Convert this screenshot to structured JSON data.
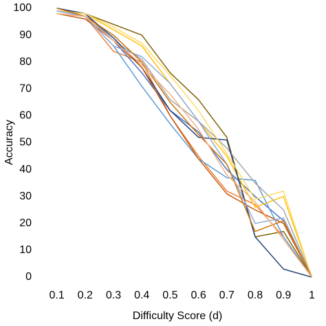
{
  "chart_data": {
    "type": "line",
    "x_label": "Difficulty Score (d)",
    "y_label": "Accuracy",
    "x": [
      0.1,
      0.2,
      0.3,
      0.4,
      0.5,
      0.6,
      0.7,
      0.8,
      0.9,
      1
    ],
    "xlim": [
      0.05,
      1.05
    ],
    "xticks": [
      0.1,
      0.2,
      0.3,
      0.4,
      0.5,
      0.6,
      0.7,
      0.8,
      0.9,
      1
    ],
    "ylim": [
      0,
      100
    ],
    "yticks": [
      0,
      10,
      20,
      30,
      40,
      50,
      60,
      70,
      80,
      90,
      100
    ],
    "grid": false,
    "series": [
      {
        "color": "#7f6000",
        "values": [
          100,
          98,
          94,
          90,
          76,
          66,
          52,
          15,
          17,
          0
        ]
      },
      {
        "color": "#ed7d31",
        "values": [
          99,
          97,
          84,
          80,
          60,
          45,
          32,
          27,
          15,
          0
        ]
      },
      {
        "color": "#4472c4",
        "values": [
          100,
          98,
          88,
          76,
          62,
          54,
          40,
          30,
          21,
          0
        ]
      },
      {
        "color": "#ffc000",
        "values": [
          99,
          98,
          92,
          86,
          72,
          58,
          45,
          26,
          30,
          0
        ]
      },
      {
        "color": "#5b9bd5",
        "values": [
          99,
          97,
          86,
          71,
          57,
          44,
          37,
          36,
          15,
          0
        ]
      },
      {
        "color": "#a5a5a5",
        "values": [
          98,
          97,
          88,
          81,
          66,
          58,
          48,
          35,
          25,
          0
        ]
      },
      {
        "color": "#264478",
        "values": [
          100,
          98,
          89,
          78,
          62,
          52,
          51,
          15,
          3,
          0
        ]
      },
      {
        "color": "#c55a11",
        "values": [
          98,
          96,
          88,
          78,
          60,
          44,
          31,
          25,
          20,
          0
        ]
      },
      {
        "color": "#ffd966",
        "values": [
          99,
          98,
          93,
          87,
          75,
          62,
          46,
          29,
          32,
          0
        ]
      },
      {
        "color": "#8faadc",
        "values": [
          99,
          97,
          86,
          82,
          72,
          58,
          42,
          20,
          22,
          0
        ]
      },
      {
        "color": "#c9740d",
        "values": [
          100,
          97,
          90,
          80,
          65,
          53,
          42,
          17,
          21,
          0
        ]
      },
      {
        "color": "#f4b183",
        "values": [
          98,
          97,
          88,
          79,
          68,
          55,
          38,
          28,
          14,
          0
        ]
      }
    ]
  }
}
